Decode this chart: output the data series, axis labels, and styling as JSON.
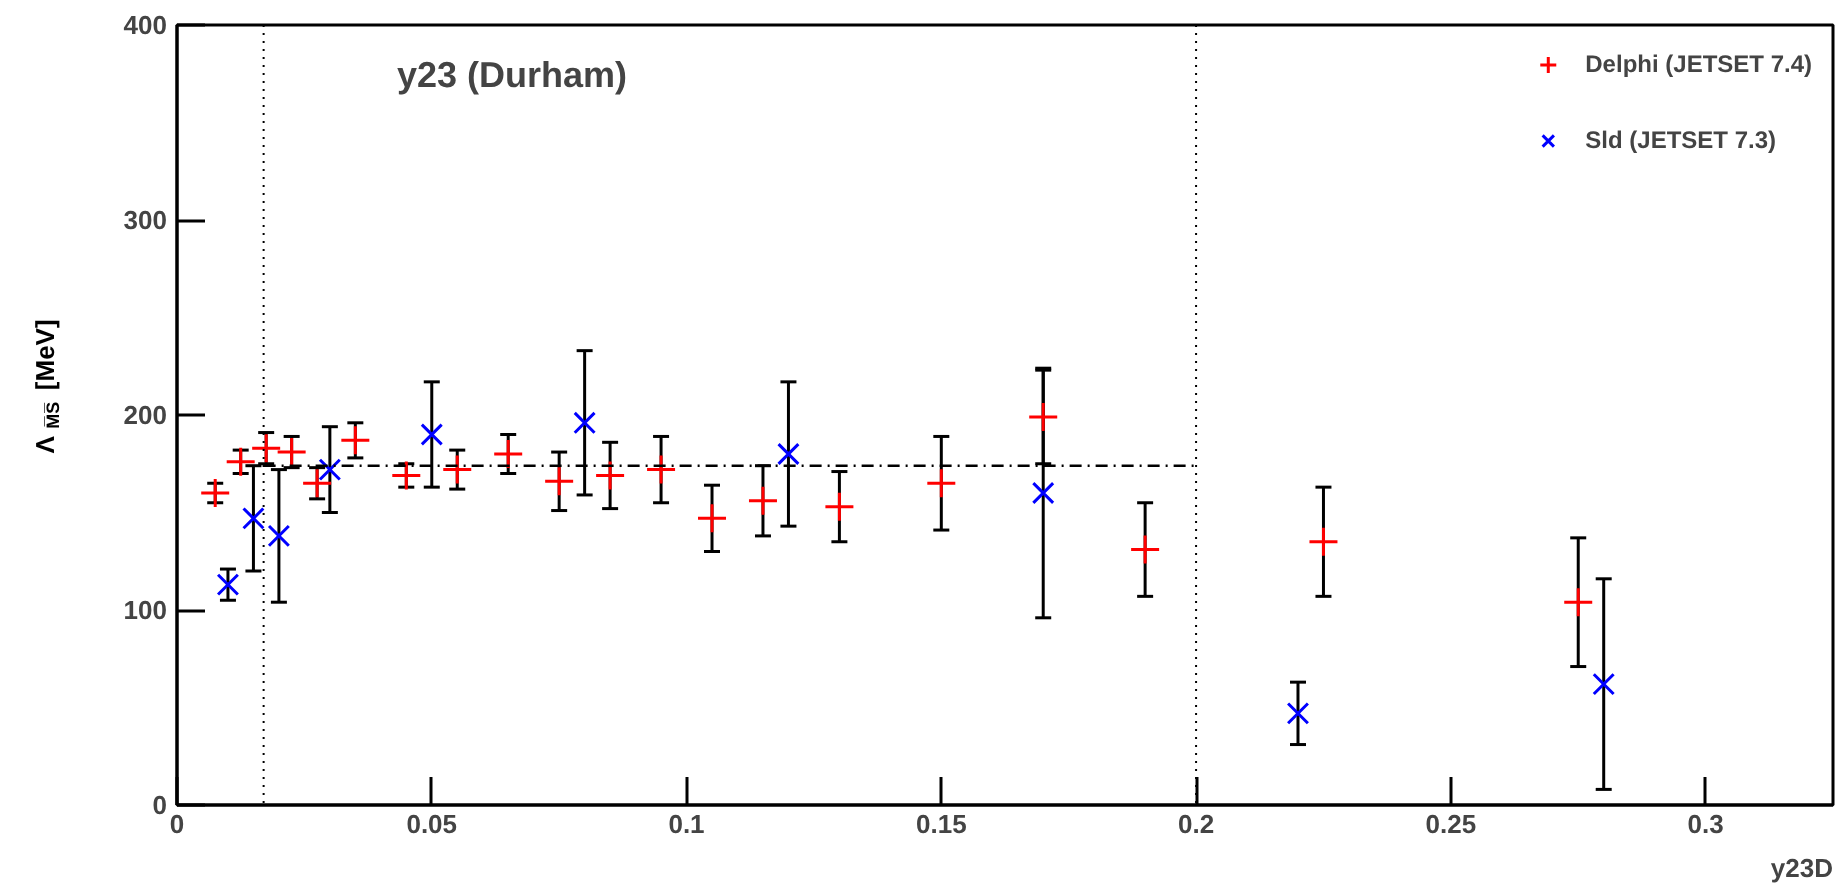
{
  "chart_data": {
    "type": "scatter",
    "title": "y23 (Durham)",
    "xlabel": "y23D",
    "ylabel": "Λ$_{M̅S̅}$ [MeV]",
    "xlim": [
      0,
      0.325
    ],
    "ylim": [
      0,
      400
    ],
    "xticks": [
      0,
      0.05,
      0.1,
      0.15,
      0.2,
      0.25,
      0.3
    ],
    "yticks": [
      0,
      100,
      200,
      300,
      400
    ],
    "legend": "top right",
    "grid": false,
    "series": [
      {
        "name": "Delphi (JETSET 7.4)",
        "color": "#ff0000",
        "marker": "plus",
        "x": [
          0.0075,
          0.0125,
          0.0175,
          0.0225,
          0.0275,
          0.035,
          0.045,
          0.055,
          0.065,
          0.075,
          0.085,
          0.095,
          0.105,
          0.115,
          0.13,
          0.15,
          0.17,
          0.19,
          0.225,
          0.275
        ],
        "values": [
          160,
          176,
          183,
          181,
          165,
          187,
          169,
          172,
          180,
          166,
          169,
          172,
          147,
          156,
          153,
          165,
          199,
          131,
          135,
          104
        ],
        "errors": [
          5,
          6,
          8,
          8,
          8,
          9,
          6,
          10,
          10,
          15,
          17,
          17,
          17,
          18,
          18,
          24,
          24,
          24,
          28,
          33
        ]
      },
      {
        "name": "Sld (JETSET 7.3)",
        "color": "#0000ff",
        "marker": "cross",
        "x": [
          0.01,
          0.015,
          0.02,
          0.03,
          0.05,
          0.08,
          0.12,
          0.17,
          0.22,
          0.28
        ],
        "values": [
          113,
          147,
          138,
          172,
          190,
          196,
          180,
          160,
          47,
          62
        ],
        "errors": [
          8,
          27,
          34,
          22,
          27,
          37,
          37,
          64,
          16,
          54
        ]
      },
      {
        "type": "line",
        "color": "#000000",
        "line_style": "dashed",
        "x": [
          0.017,
          0.2
        ],
        "values": [
          174,
          174
        ]
      }
    ],
    "ref_lines": [
      {
        "axis": "x",
        "value": 0.017,
        "line_style": "dotted"
      },
      {
        "axis": "x",
        "value": 0.2,
        "line_style": "dotted"
      }
    ]
  }
}
